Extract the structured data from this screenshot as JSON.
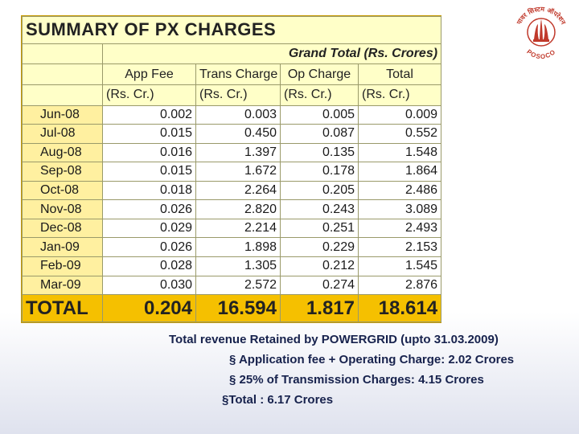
{
  "table": {
    "title": "SUMMARY OF PX CHARGES",
    "grand_total_label": "Grand Total (Rs. Crores)",
    "columns": [
      "App Fee",
      "Trans Charge",
      "Op Charge",
      "Total"
    ],
    "units": [
      "(Rs. Cr.)",
      "(Rs. Cr.)",
      "(Rs. Cr.)",
      "(Rs. Cr.)"
    ],
    "rows": [
      {
        "month": "Jun-08",
        "app_fee": "0.002",
        "trans_charge": "0.003",
        "op_charge": "0.005",
        "total": "0.009"
      },
      {
        "month": "Jul-08",
        "app_fee": "0.015",
        "trans_charge": "0.450",
        "op_charge": "0.087",
        "total": "0.552"
      },
      {
        "month": "Aug-08",
        "app_fee": "0.016",
        "trans_charge": "1.397",
        "op_charge": "0.135",
        "total": "1.548"
      },
      {
        "month": "Sep-08",
        "app_fee": "0.015",
        "trans_charge": "1.672",
        "op_charge": "0.178",
        "total": "1.864"
      },
      {
        "month": "Oct-08",
        "app_fee": "0.018",
        "trans_charge": "2.264",
        "op_charge": "0.205",
        "total": "2.486"
      },
      {
        "month": "Nov-08",
        "app_fee": "0.026",
        "trans_charge": "2.820",
        "op_charge": "0.243",
        "total": "3.089"
      },
      {
        "month": "Dec-08",
        "app_fee": "0.029",
        "trans_charge": "2.214",
        "op_charge": "0.251",
        "total": "2.493"
      },
      {
        "month": "Jan-09",
        "app_fee": "0.026",
        "trans_charge": "1.898",
        "op_charge": "0.229",
        "total": "2.153"
      },
      {
        "month": "Feb-09",
        "app_fee": "0.028",
        "trans_charge": "1.305",
        "op_charge": "0.212",
        "total": "1.545"
      },
      {
        "month": "Mar-09",
        "app_fee": "0.030",
        "trans_charge": "2.572",
        "op_charge": "0.274",
        "total": "2.876"
      }
    ],
    "total_row": {
      "label": "TOTAL",
      "app_fee": "0.204",
      "trans_charge": "16.594",
      "op_charge": "1.817",
      "total": "18.614"
    }
  },
  "logo": {
    "icon": "posoco-logo-icon",
    "hindi_text": "पावर सिस्टम ऑपरेशन",
    "text": "POSOCO",
    "color": "#c0392b"
  },
  "notes": {
    "heading": "Total revenue Retained by POWERGRID (upto 31.03.2009)",
    "items": [
      "§ Application fee + Operating Charge: 2.02 Crores",
      "§ 25% of Transmission Charges: 4.15 Crores",
      "§Total   : 6.17 Crores"
    ]
  },
  "colors": {
    "table_frame": "#f5c000",
    "header_fill": "#ffffc8",
    "month_fill": "#fff0a0",
    "note_text": "#17224d"
  }
}
